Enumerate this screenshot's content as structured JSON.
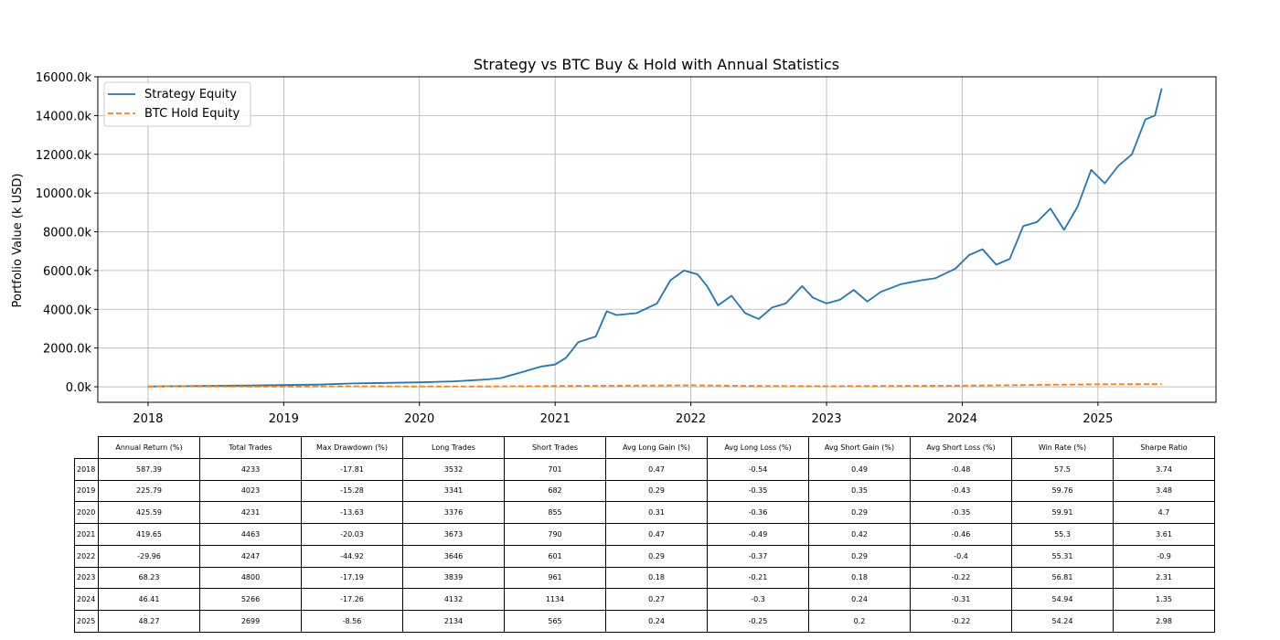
{
  "chart_data": {
    "type": "line",
    "title": "Strategy vs BTC Buy & Hold with Annual Statistics",
    "ylabel": "Portfolio Value (k USD)",
    "xlabel": "",
    "xlim": [
      2017.63,
      2025.87
    ],
    "ylim": [
      -800,
      16000
    ],
    "x_ticks": [
      "2018",
      "2019",
      "2020",
      "2021",
      "2022",
      "2023",
      "2024",
      "2025"
    ],
    "y_ticks": [
      {
        "value": 0,
        "label": "0.0k"
      },
      {
        "value": 2000,
        "label": "2000.0k"
      },
      {
        "value": 4000,
        "label": "4000.0k"
      },
      {
        "value": 6000,
        "label": "6000.0k"
      },
      {
        "value": 8000,
        "label": "8000.0k"
      },
      {
        "value": 10000,
        "label": "10000.0k"
      },
      {
        "value": 12000,
        "label": "12000.0k"
      },
      {
        "value": 14000,
        "label": "14000.0k"
      },
      {
        "value": 16000,
        "label": "16000.0k"
      }
    ],
    "grid": true,
    "legend_position": "top-left",
    "series": [
      {
        "name": "Strategy Equity",
        "color": "#1f77b4",
        "style": "solid",
        "points": [
          [
            2018.0,
            10
          ],
          [
            2018.25,
            30
          ],
          [
            2018.5,
            50
          ],
          [
            2018.75,
            70
          ],
          [
            2019.0,
            85
          ],
          [
            2019.25,
            110
          ],
          [
            2019.5,
            170
          ],
          [
            2019.75,
            200
          ],
          [
            2020.0,
            230
          ],
          [
            2020.25,
            280
          ],
          [
            2020.5,
            380
          ],
          [
            2020.6,
            450
          ],
          [
            2020.75,
            750
          ],
          [
            2020.9,
            1050
          ],
          [
            2021.0,
            1150
          ],
          [
            2021.08,
            1500
          ],
          [
            2021.17,
            2300
          ],
          [
            2021.3,
            2600
          ],
          [
            2021.38,
            3900
          ],
          [
            2021.45,
            3700
          ],
          [
            2021.6,
            3800
          ],
          [
            2021.75,
            4300
          ],
          [
            2021.85,
            5500
          ],
          [
            2021.95,
            6000
          ],
          [
            2022.05,
            5800
          ],
          [
            2022.12,
            5200
          ],
          [
            2022.2,
            4200
          ],
          [
            2022.3,
            4700
          ],
          [
            2022.4,
            3800
          ],
          [
            2022.5,
            3500
          ],
          [
            2022.6,
            4100
          ],
          [
            2022.7,
            4300
          ],
          [
            2022.82,
            5200
          ],
          [
            2022.9,
            4600
          ],
          [
            2023.0,
            4300
          ],
          [
            2023.1,
            4500
          ],
          [
            2023.2,
            5000
          ],
          [
            2023.3,
            4400
          ],
          [
            2023.4,
            4900
          ],
          [
            2023.55,
            5300
          ],
          [
            2023.7,
            5500
          ],
          [
            2023.8,
            5600
          ],
          [
            2023.95,
            6100
          ],
          [
            2024.05,
            6800
          ],
          [
            2024.15,
            7100
          ],
          [
            2024.25,
            6300
          ],
          [
            2024.35,
            6600
          ],
          [
            2024.45,
            8300
          ],
          [
            2024.55,
            8500
          ],
          [
            2024.65,
            9200
          ],
          [
            2024.75,
            8100
          ],
          [
            2024.85,
            9300
          ],
          [
            2024.95,
            11200
          ],
          [
            2025.05,
            10500
          ],
          [
            2025.15,
            11400
          ],
          [
            2025.25,
            12000
          ],
          [
            2025.35,
            13800
          ],
          [
            2025.42,
            14000
          ],
          [
            2025.47,
            15400
          ]
        ]
      },
      {
        "name": "BTC Hold Equity",
        "color": "#ff7f0e",
        "style": "dashed",
        "points": [
          [
            2018.0,
            20
          ],
          [
            2018.5,
            15
          ],
          [
            2019.0,
            8
          ],
          [
            2019.5,
            25
          ],
          [
            2020.0,
            15
          ],
          [
            2020.5,
            18
          ],
          [
            2021.0,
            40
          ],
          [
            2021.5,
            60
          ],
          [
            2022.0,
            80
          ],
          [
            2022.5,
            40
          ],
          [
            2023.0,
            30
          ],
          [
            2023.5,
            45
          ],
          [
            2024.0,
            60
          ],
          [
            2024.5,
            90
          ],
          [
            2025.0,
            130
          ],
          [
            2025.47,
            140
          ]
        ]
      }
    ]
  },
  "table": {
    "columns": [
      "Annual Return (%)",
      "Total Trades",
      "Max Drawdown (%)",
      "Long Trades",
      "Short Trades",
      "Avg Long Gain (%)",
      "Avg Long Loss (%)",
      "Avg Short Gain (%)",
      "Avg Short Loss (%)",
      "Win Rate (%)",
      "Sharpe Ratio"
    ],
    "rows": [
      {
        "year": "2018",
        "cells": [
          "587.39",
          "4233",
          "-17.81",
          "3532",
          "701",
          "0.47",
          "-0.54",
          "0.49",
          "-0.48",
          "57.5",
          "3.74"
        ]
      },
      {
        "year": "2019",
        "cells": [
          "225.79",
          "4023",
          "-15.28",
          "3341",
          "682",
          "0.29",
          "-0.35",
          "0.35",
          "-0.43",
          "59.76",
          "3.48"
        ]
      },
      {
        "year": "2020",
        "cells": [
          "425.59",
          "4231",
          "-13.63",
          "3376",
          "855",
          "0.31",
          "-0.36",
          "0.29",
          "-0.35",
          "59.91",
          "4.7"
        ]
      },
      {
        "year": "2021",
        "cells": [
          "419.65",
          "4463",
          "-20.03",
          "3673",
          "790",
          "0.47",
          "-0.49",
          "0.42",
          "-0.46",
          "55.3",
          "3.61"
        ]
      },
      {
        "year": "2022",
        "cells": [
          "-29.96",
          "4247",
          "-44.92",
          "3646",
          "601",
          "0.29",
          "-0.37",
          "0.29",
          "-0.4",
          "55.31",
          "-0.9"
        ]
      },
      {
        "year": "2023",
        "cells": [
          "68.23",
          "4800",
          "-17.19",
          "3839",
          "961",
          "0.18",
          "-0.21",
          "0.18",
          "-0.22",
          "56.81",
          "2.31"
        ]
      },
      {
        "year": "2024",
        "cells": [
          "46.41",
          "5266",
          "-17.26",
          "4132",
          "1134",
          "0.27",
          "-0.3",
          "0.24",
          "-0.31",
          "54.94",
          "1.35"
        ]
      },
      {
        "year": "2025",
        "cells": [
          "48.27",
          "2699",
          "-8.56",
          "2134",
          "565",
          "0.24",
          "-0.25",
          "0.2",
          "-0.22",
          "54.24",
          "2.98"
        ]
      }
    ]
  }
}
